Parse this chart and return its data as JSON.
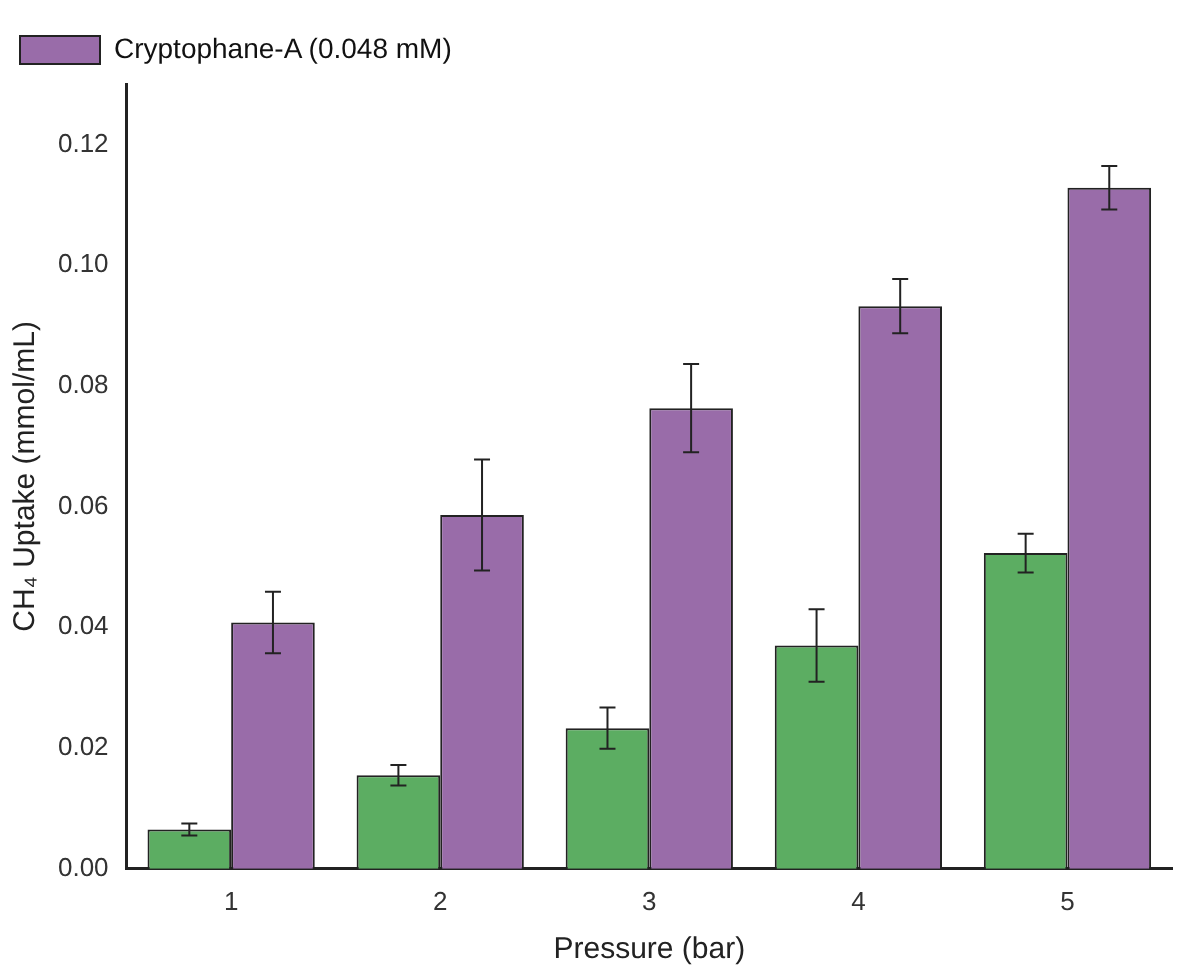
{
  "chart_data": {
    "type": "bar",
    "xlabel": "Pressure (bar)",
    "ylabel": "CH₄ Uptake (mmol/mL)",
    "categories": [
      "1",
      "2",
      "3",
      "4",
      "5"
    ],
    "series": [
      {
        "color": "#5cad62",
        "values": [
          0.0065,
          0.0155,
          0.0233,
          0.037,
          0.0523
        ],
        "errors": [
          0.001,
          0.0017,
          0.0034,
          0.006,
          0.0032
        ]
      },
      {
        "name": "Cryptophane-A (0.048 mM)",
        "color": "#996ca9",
        "values": [
          0.0408,
          0.0586,
          0.0763,
          0.0932,
          0.1128
        ],
        "errors": [
          0.0051,
          0.0092,
          0.0073,
          0.0045,
          0.0036
        ]
      }
    ],
    "ylim": [
      0,
      0.13
    ],
    "yticks": [
      {
        "value": 0,
        "label": "0.00"
      },
      {
        "value": 0.02,
        "label": "0.02"
      },
      {
        "value": 0.04,
        "label": "0.04"
      },
      {
        "value": 0.06,
        "label": "0.06"
      },
      {
        "value": 0.08,
        "label": "0.08"
      },
      {
        "value": 0.1,
        "label": "0.10"
      },
      {
        "value": 0.12,
        "label": "0.12"
      }
    ],
    "grid": false,
    "legend": "top left"
  }
}
